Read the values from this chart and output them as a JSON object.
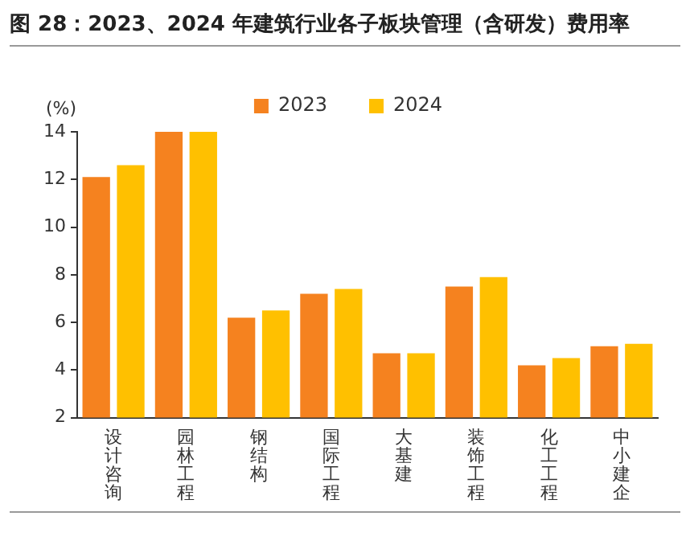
{
  "chart_data": {
    "type": "bar",
    "title": "图 28：2023、2024 年建筑行业各子板块管理（含研发）费用率",
    "ylabel": "(%)",
    "categories": [
      "设计咨询",
      "园林工程",
      "钢结构",
      "国际工程",
      "大基建",
      "装饰工程",
      "化工工程",
      "中小建企"
    ],
    "series": [
      {
        "name": "2023",
        "color": "#f5821f",
        "values": [
          12.1,
          14,
          6.2,
          7.2,
          4.7,
          7.5,
          4.2,
          5.0
        ]
      },
      {
        "name": "2024",
        "color": "#ffc000",
        "values": [
          12.6,
          14,
          6.5,
          7.4,
          4.7,
          7.9,
          4.5,
          5.1
        ]
      }
    ],
    "ylim": [
      2,
      14
    ],
    "yticks": [
      2,
      4,
      6,
      8,
      10,
      12,
      14
    ],
    "grid": false,
    "legend": "top"
  }
}
